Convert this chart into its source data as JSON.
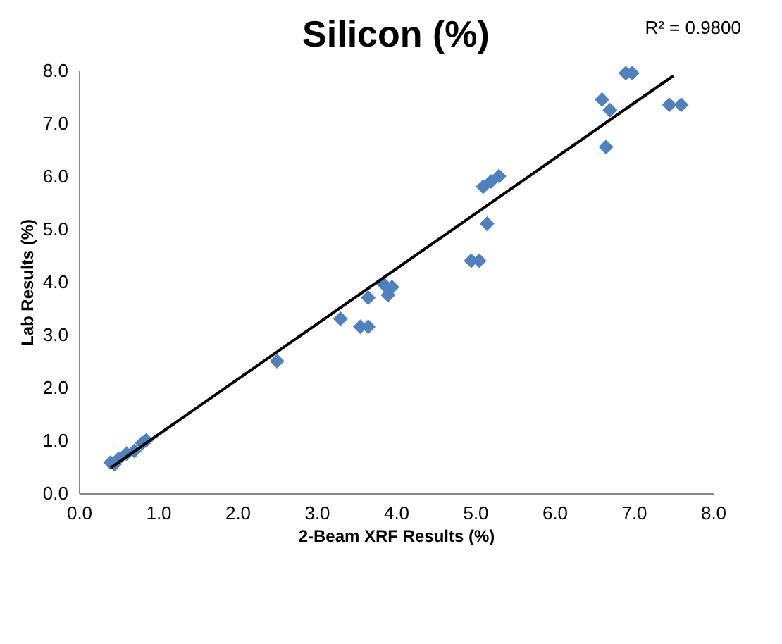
{
  "chart_data": {
    "type": "scatter",
    "title": "Silicon (%)",
    "xlabel": "2-Beam XRF Results (%)",
    "ylabel": "Lab Results (%)",
    "annotations": [
      "R² = 0.9800"
    ],
    "grid": false,
    "xlim": [
      0,
      8
    ],
    "ylim": [
      0,
      8.0
    ],
    "xticks": [
      {
        "value": 0,
        "label": "0.0"
      },
      {
        "value": 1,
        "label": "1.0"
      },
      {
        "value": 2,
        "label": "2.0"
      },
      {
        "value": 3,
        "label": "3.0"
      },
      {
        "value": 4,
        "label": "4.0"
      },
      {
        "value": 5,
        "label": "5.0"
      },
      {
        "value": 6,
        "label": "6.0"
      },
      {
        "value": 7,
        "label": "7.0"
      },
      {
        "value": 8,
        "label": "8.0"
      }
    ],
    "yticks": [
      {
        "value": 0,
        "label": "0.0"
      },
      {
        "value": 1,
        "label": "1.0"
      },
      {
        "value": 2,
        "label": "2.0"
      },
      {
        "value": 3,
        "label": "3.0"
      },
      {
        "value": 4,
        "label": "4.0"
      },
      {
        "value": 5,
        "label": "5.0"
      },
      {
        "value": 6,
        "label": "6.0"
      },
      {
        "value": 7,
        "label": "7.0"
      },
      {
        "value": 8,
        "label": "8.0"
      }
    ],
    "series": [
      {
        "color": "#4f81bd",
        "marker": "diamond",
        "x": [
          0.4,
          0.45,
          0.5,
          0.6,
          0.7,
          0.8,
          0.85,
          2.5,
          3.3,
          3.55,
          3.65,
          3.65,
          3.85,
          3.9,
          3.95,
          4.95,
          5.05,
          5.15,
          5.1,
          5.2,
          5.3,
          6.65,
          6.6,
          6.7,
          6.9,
          6.98,
          7.45,
          7.6
        ],
        "values": [
          0.58,
          0.55,
          0.65,
          0.75,
          0.8,
          0.95,
          1.0,
          2.5,
          3.3,
          3.15,
          3.15,
          3.7,
          3.95,
          3.75,
          3.9,
          4.4,
          4.4,
          5.1,
          5.8,
          5.9,
          6.0,
          6.55,
          7.45,
          7.25,
          7.95,
          7.95,
          7.35,
          7.35
        ]
      },
      {
        "type": "line",
        "color": "#000000",
        "x": [
          0.4,
          7.5
        ],
        "values": [
          0.48,
          7.9
        ]
      }
    ]
  }
}
